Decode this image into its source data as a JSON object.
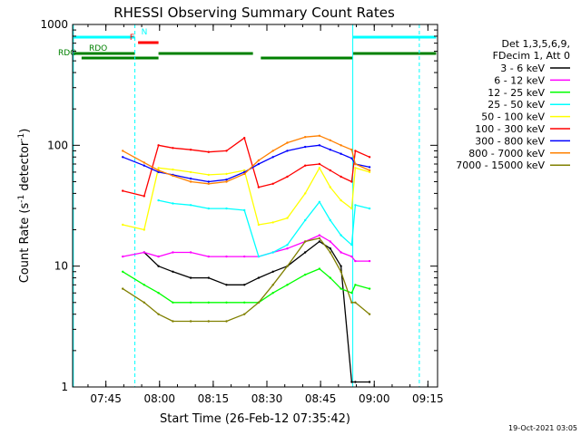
{
  "chart_data": {
    "type": "line",
    "title": "RHESSI Observing Summary Count Rates",
    "xlabel": "Start Time (26-Feb-12 07:35:42)",
    "ylabel_prefix": "Count Rate (s",
    "ylabel_sup": "-1",
    "ylabel_middle": " detector",
    "ylabel_sup2": "-1",
    "ylabel_suffix": ")",
    "y_scale": "log",
    "ylim": [
      1,
      1000
    ],
    "xlim_minutes": [
      0,
      102
    ],
    "x_ticks": [
      {
        "label": "07:45",
        "min": 9.3
      },
      {
        "label": "08:00",
        "min": 24.3
      },
      {
        "label": "08:15",
        "min": 39.3
      },
      {
        "label": "08:30",
        "min": 54.3
      },
      {
        "label": "08:45",
        "min": 69.3
      },
      {
        "label": "09:00",
        "min": 84.3
      },
      {
        "label": "09:15",
        "min": 99.3
      }
    ],
    "y_ticks": [
      {
        "label": "1",
        "value": 1
      },
      {
        "label": "10",
        "value": 10
      },
      {
        "label": "100",
        "value": 100
      },
      {
        "label": "1000",
        "value": 1000
      }
    ],
    "legend": {
      "title_lines": [
        "Det 1,3,5,6,9,",
        "FDecim 1, Att 0"
      ],
      "placement": "right"
    },
    "flags": [
      {
        "label": "N",
        "color": "#00ffff",
        "segments": [
          [
            0,
            17.4
          ],
          [
            78.3,
            101.6
          ]
        ]
      },
      {
        "label": "F",
        "color": "#ff0000",
        "segments": [
          [
            18.3,
            24.0
          ]
        ]
      },
      {
        "label": "RDO",
        "color": "#008000",
        "segments": [
          [
            0,
            17.4
          ],
          [
            24.0,
            50.4
          ],
          [
            78.3,
            101.6
          ]
        ]
      },
      {
        "label": "RDG",
        "color": "#008000",
        "segments": [
          [
            2.5,
            24.0
          ],
          [
            52.6,
            78.3
          ]
        ]
      }
    ],
    "vertical_lines": [
      {
        "min": 0.2,
        "style": "solid"
      },
      {
        "min": 17.4,
        "style": "dashed"
      },
      {
        "min": 78.3,
        "style": "solid"
      },
      {
        "min": 96.9,
        "style": "dashed"
      }
    ],
    "x_minutes": [
      14,
      20,
      24,
      28,
      33,
      38,
      43,
      48,
      52,
      56,
      60,
      65,
      69,
      72,
      75,
      78,
      79,
      83
    ],
    "series": [
      {
        "name": "3 - 6 keV",
        "color": "#000000",
        "values": [
          null,
          13,
          10,
          9,
          8,
          8,
          7,
          7,
          8,
          9,
          10,
          13,
          16,
          14,
          10,
          1.1,
          1.1,
          1.1
        ]
      },
      {
        "name": "6 - 12 keV",
        "color": "#ff00ff",
        "values": [
          12,
          13,
          12,
          13,
          13,
          12,
          12,
          12,
          12,
          13,
          14,
          16,
          18,
          16,
          13,
          12,
          11,
          11
        ]
      },
      {
        "name": "12 - 25 keV",
        "color": "#00ff00",
        "values": [
          9,
          7,
          6,
          5,
          5,
          5,
          5,
          5,
          5,
          6,
          7,
          8.5,
          9.5,
          8,
          6.5,
          6,
          7,
          6.5
        ]
      },
      {
        "name": "25 - 50 keV",
        "color": "#00ffff",
        "values": [
          null,
          null,
          35,
          33,
          32,
          30,
          30,
          29,
          12,
          13,
          15,
          24,
          34,
          24,
          18,
          15,
          32,
          30
        ]
      },
      {
        "name": "50 - 100 keV",
        "color": "#ffff00",
        "values": [
          22,
          20,
          65,
          63,
          60,
          57,
          58,
          62,
          22,
          23,
          25,
          40,
          65,
          45,
          35,
          30,
          65,
          60
        ]
      },
      {
        "name": "100 - 300 keV",
        "color": "#ff0000",
        "values": [
          42,
          38,
          100,
          95,
          92,
          88,
          90,
          115,
          45,
          48,
          55,
          68,
          70,
          62,
          55,
          50,
          90,
          80
        ]
      },
      {
        "name": "300 - 800 keV",
        "color": "#0000ff",
        "values": [
          80,
          68,
          60,
          57,
          53,
          50,
          52,
          60,
          70,
          80,
          90,
          97,
          100,
          92,
          85,
          78,
          70,
          66
        ]
      },
      {
        "name": "800 - 7000 keV",
        "color": "#ff8000",
        "values": [
          90,
          72,
          62,
          56,
          50,
          48,
          50,
          58,
          75,
          90,
          105,
          117,
          120,
          110,
          100,
          92,
          70,
          62
        ]
      },
      {
        "name": "7000 - 15000 keV",
        "color": "#808000",
        "values": [
          6.5,
          5,
          4,
          3.5,
          3.5,
          3.5,
          3.5,
          4,
          5,
          7,
          10,
          16,
          17,
          13,
          9,
          5,
          5,
          4
        ]
      }
    ],
    "footer_date": "19-Oct-2021 03:05"
  },
  "colors": {
    "background": "#ffffff",
    "axis": "#000000"
  }
}
